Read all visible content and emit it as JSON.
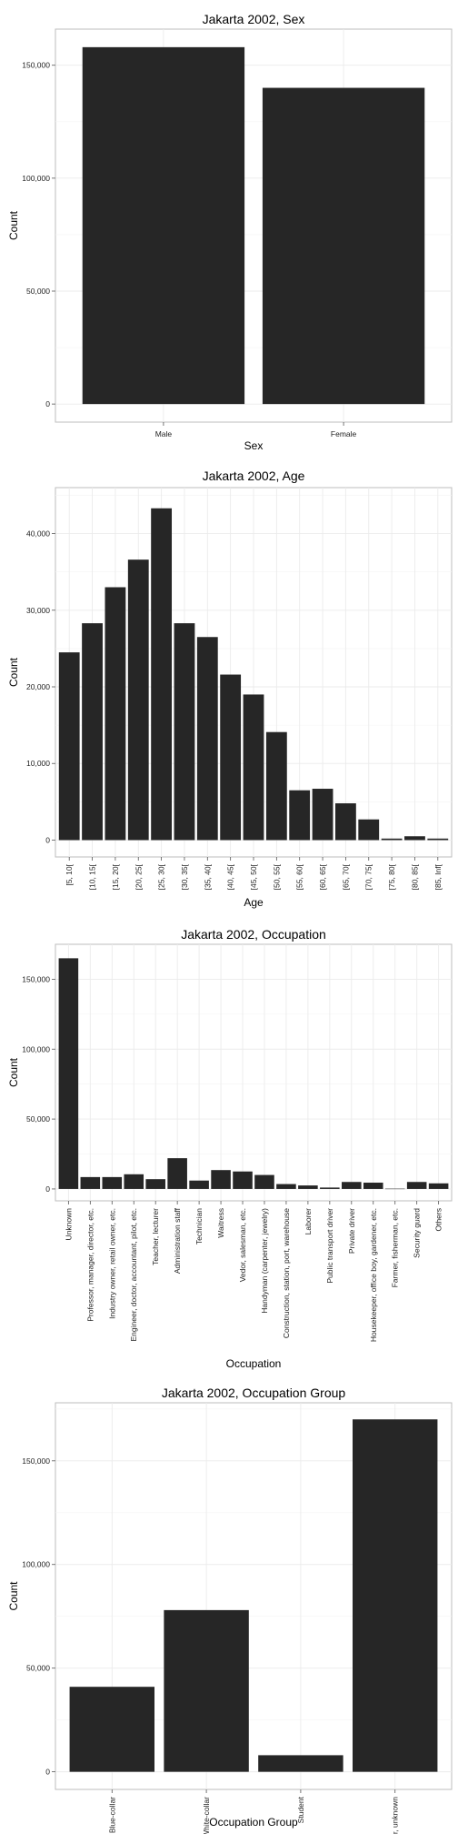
{
  "chart_data": [
    {
      "type": "bar",
      "title": "Jakarta 2002, Sex",
      "xlabel": "Sex",
      "ylabel": "Count",
      "categories": [
        "Male",
        "Female"
      ],
      "values": [
        158000,
        140000
      ],
      "ylim": [
        -8000,
        166000
      ],
      "yticks": [
        0,
        50000,
        100000,
        150000
      ],
      "ytick_labels": [
        "0",
        "50,000",
        "100,000",
        "150,000"
      ],
      "grid": true,
      "bar_color": "#262626"
    },
    {
      "type": "bar",
      "title": "Jakarta 2002, Age",
      "xlabel": "Age",
      "ylabel": "Count",
      "categories": [
        "[5, 10[",
        "[10, 15[",
        "[15, 20[",
        "[20, 25[",
        "[25, 30[",
        "[30, 35[",
        "[35, 40[",
        "[40, 45[",
        "[45, 50[",
        "[50, 55[",
        "[55, 60[",
        "[60, 65[",
        "[65, 70[",
        "[70, 75[",
        "[75, 80[",
        "[80, 85[",
        "[85, Inf["
      ],
      "values": [
        24500,
        28300,
        33000,
        36600,
        43300,
        28300,
        26500,
        21600,
        19000,
        14100,
        6500,
        6700,
        4800,
        2700,
        200,
        500,
        200
      ],
      "ylim": [
        -2200,
        46000
      ],
      "yticks": [
        0,
        10000,
        20000,
        30000,
        40000
      ],
      "ytick_labels": [
        "0",
        "10,000",
        "20,000",
        "30,000",
        "40,000"
      ],
      "grid": true,
      "bar_color": "#262626"
    },
    {
      "type": "bar",
      "title": "Jakarta 2002, Occupation",
      "xlabel": "Occupation",
      "ylabel": "Count",
      "categories": [
        "Unknown",
        "Professor, manager, director, etc.",
        "Industry owner, retail owner, etc.",
        "Engineer, doctor, accountant, pilot, etc.",
        "Teacher, lecturer",
        "Administration staff",
        "Technician",
        "Waitress",
        "Vedor, salesman, etc.",
        "Handyman (carpenter, jewelry)",
        "Construction, station, port, warehouse",
        "Laborer",
        "Public transport driver",
        "Private driver",
        "Housekeeper, office boy, gardener, etc.",
        "Farmer, fisherman, etc.",
        "Security guard",
        "Others"
      ],
      "values": [
        165000,
        8500,
        8500,
        10500,
        7000,
        22000,
        6000,
        13500,
        12500,
        10000,
        3500,
        2500,
        1000,
        5000,
        4500,
        200,
        5000,
        4000
      ],
      "ylim": [
        -8500,
        175000
      ],
      "yticks": [
        0,
        50000,
        100000,
        150000
      ],
      "ytick_labels": [
        "0",
        "50,000",
        "100,000",
        "150,000"
      ],
      "grid": true,
      "bar_color": "#262626"
    },
    {
      "type": "bar",
      "title": "Jakarta 2002, Occupation Group",
      "xlabel": "Occupation Group",
      "ylabel": "Count",
      "categories": [
        "Blue-collar",
        "White-collar",
        "Student",
        "Other, unknown"
      ],
      "values": [
        41000,
        78000,
        8000,
        170000
      ],
      "ylim": [
        -8500,
        178000
      ],
      "yticks": [
        0,
        50000,
        100000,
        150000
      ],
      "ytick_labels": [
        "0",
        "50,000",
        "100,000",
        "150,000"
      ],
      "grid": true,
      "bar_color": "#262626"
    }
  ]
}
